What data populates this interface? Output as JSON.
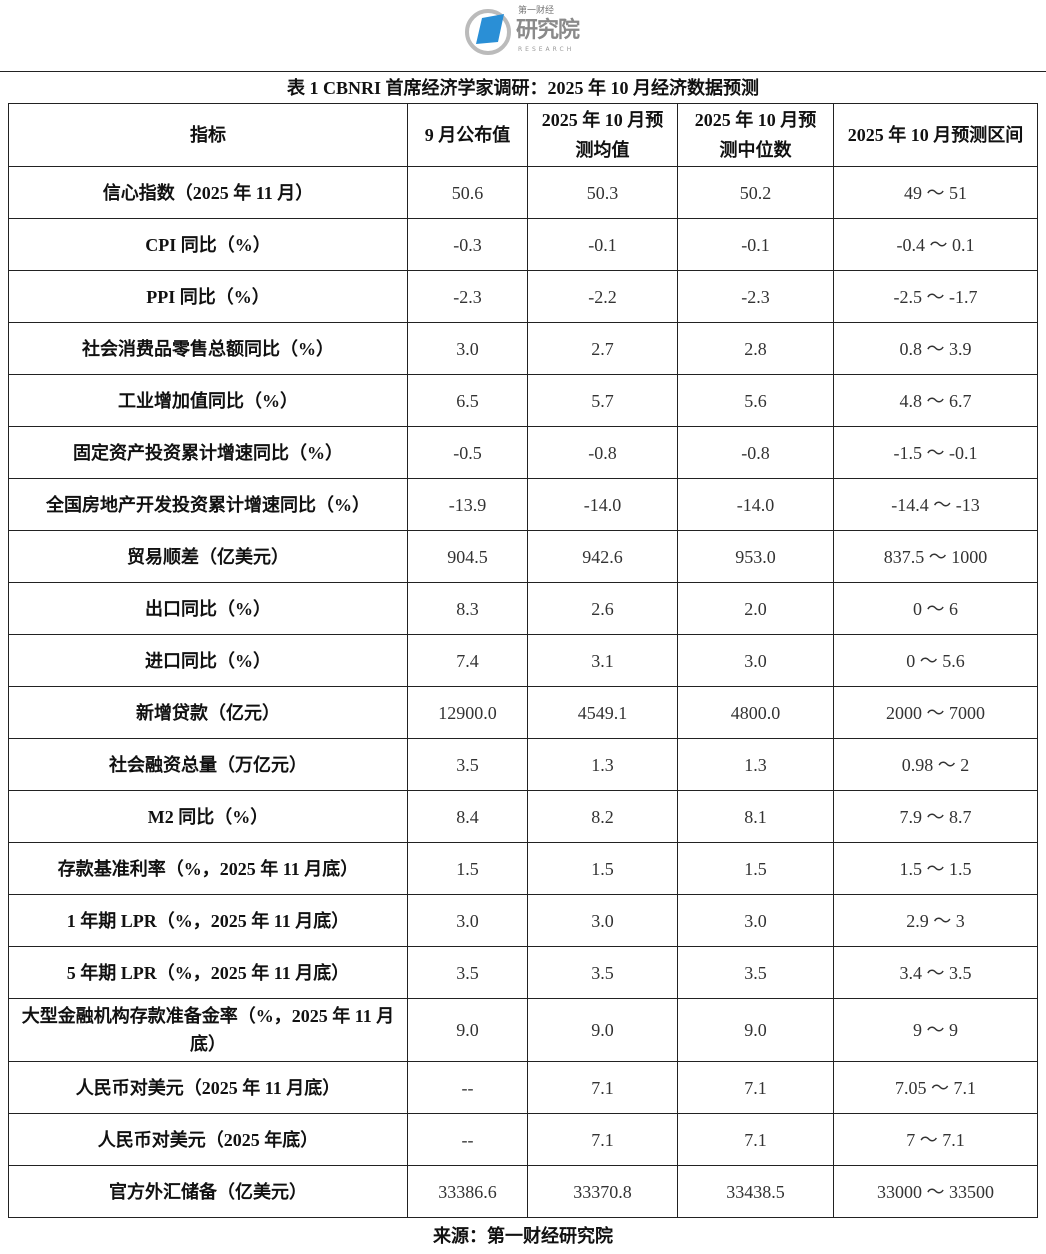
{
  "logo": {
    "small": "第一财经",
    "big": "研究院",
    "sub": "RESEARCH",
    "color": "#2a8fd6"
  },
  "caption": "表 1 CBNRI 首席经济学家调研：2025 年 10 月经济数据预测",
  "headers": [
    "指标",
    "9 月公布值",
    "2025 年 10 月预测均值",
    "2025 年 10 月预测中位数",
    "2025 年 10 月预测区间"
  ],
  "rows": [
    [
      "信心指数（2025 年 11 月）",
      "50.6",
      "50.3",
      "50.2",
      "49 ～ 51"
    ],
    [
      "CPI 同比（%）",
      "-0.3",
      "-0.1",
      "-0.1",
      "-0.4 ～ 0.1"
    ],
    [
      "PPI 同比（%）",
      "-2.3",
      "-2.2",
      "-2.3",
      "-2.5 ～ -1.7"
    ],
    [
      "社会消费品零售总额同比（%）",
      "3.0",
      "2.7",
      "2.8",
      "0.8 ～ 3.9"
    ],
    [
      "工业增加值同比（%）",
      "6.5",
      "5.7",
      "5.6",
      "4.8 ～ 6.7"
    ],
    [
      "固定资产投资累计增速同比（%）",
      "-0.5",
      "-0.8",
      "-0.8",
      "-1.5 ～ -0.1"
    ],
    [
      "全国房地产开发投资累计增速同比（%）",
      "-13.9",
      "-14.0",
      "-14.0",
      "-14.4 ～ -13"
    ],
    [
      "贸易顺差（亿美元）",
      "904.5",
      "942.6",
      "953.0",
      "837.5 ～ 1000"
    ],
    [
      "出口同比（%）",
      "8.3",
      "2.6",
      "2.0",
      "0 ～ 6"
    ],
    [
      "进口同比（%）",
      "7.4",
      "3.1",
      "3.0",
      "0 ～ 5.6"
    ],
    [
      "新增贷款（亿元）",
      "12900.0",
      "4549.1",
      "4800.0",
      "2000 ～ 7000"
    ],
    [
      "社会融资总量（万亿元）",
      "3.5",
      "1.3",
      "1.3",
      "0.98 ～ 2"
    ],
    [
      "M2 同比（%）",
      "8.4",
      "8.2",
      "8.1",
      "7.9 ～ 8.7"
    ],
    [
      "存款基准利率（%，2025 年 11 月底）",
      "1.5",
      "1.5",
      "1.5",
      "1.5 ～ 1.5"
    ],
    [
      "1 年期 LPR（%，2025 年 11 月底）",
      "3.0",
      "3.0",
      "3.0",
      "2.9 ～ 3"
    ],
    [
      "5 年期 LPR（%，2025 年 11 月底）",
      "3.5",
      "3.5",
      "3.5",
      "3.4 ～ 3.5"
    ],
    [
      "大型金融机构存款准备金率（%，2025 年 11 月底）",
      "9.0",
      "9.0",
      "9.0",
      "9 ～ 9"
    ],
    [
      "人民币对美元（2025 年 11 月底）",
      "--",
      "7.1",
      "7.1",
      "7.05 ～ 7.1"
    ],
    [
      "人民币对美元（2025 年底）",
      "--",
      "7.1",
      "7.1",
      "7 ～ 7.1"
    ],
    [
      "官方外汇储备（亿美元）",
      "33386.6",
      "33370.8",
      "33438.5",
      "33000 ～ 33500"
    ]
  ],
  "source": "来源：第一财经研究院"
}
